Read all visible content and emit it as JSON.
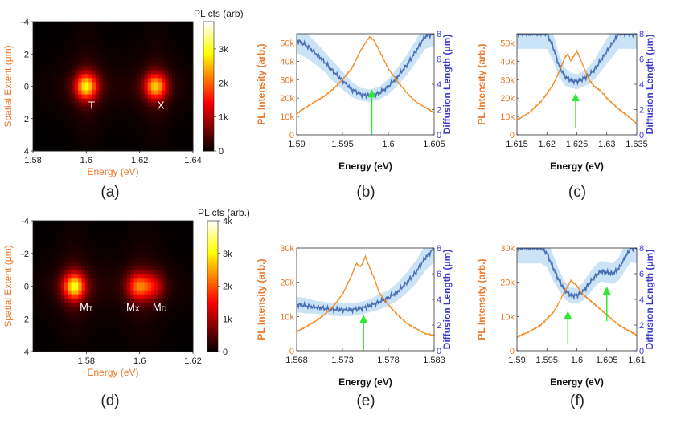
{
  "colors": {
    "orange": "#f28a1e",
    "blue": "#4a70b5",
    "band": "#b9d9f3",
    "axis_orange": "#e9782a",
    "axis_blue": "#3a3acf",
    "arrow": "#33e833"
  },
  "chart_data": [
    {
      "id": "a",
      "type": "heatmap",
      "panel_label": "(a)",
      "xlabel": "Energy (eV)",
      "ylabel": "Spatial Extent (μm)",
      "xlim": [
        1.58,
        1.64
      ],
      "ylim": [
        -4,
        4
      ],
      "xticks": [
        1.58,
        1.6,
        1.62,
        1.64
      ],
      "xtick_labels": [
        "1.58",
        "1.6",
        "1.62",
        "1.64"
      ],
      "yticks": [
        -4,
        -2,
        0,
        2,
        4
      ],
      "ytick_labels": [
        "-4",
        "-2",
        "0",
        "2",
        "4"
      ],
      "colorbar_label": "PL cts (arb)",
      "colorbar_range": [
        0,
        3800
      ],
      "colorbar_ticks": [
        0,
        1000,
        2000,
        3000
      ],
      "colorbar_tick_labels": [
        "0",
        "1k",
        "2k",
        "3k"
      ],
      "peaks": [
        {
          "energy": 1.6,
          "position": 0,
          "intensity": 3300,
          "sigma_e": 0.0028,
          "sigma_x": 0.55
        },
        {
          "energy": 1.626,
          "position": 0,
          "intensity": 3000,
          "sigma_e": 0.0028,
          "sigma_x": 0.55
        }
      ],
      "annotations": [
        {
          "text": "T",
          "energy": 1.602,
          "position": 1.4
        },
        {
          "text": "X",
          "energy": 1.628,
          "position": 1.4
        }
      ]
    },
    {
      "id": "b",
      "type": "line",
      "panel_label": "(b)",
      "xlabel": "Energy (eV)",
      "ylabel_left": "PL Intensity (arb.)",
      "ylabel_right": "Diffusion Length (μm)",
      "xlim": [
        1.59,
        1.605
      ],
      "ylim_left": [
        0,
        55000
      ],
      "ylim_right": [
        0,
        8
      ],
      "xticks": [
        1.59,
        1.595,
        1.6,
        1.605
      ],
      "xtick_labels": [
        "1.59",
        "1.595",
        "1.6",
        "1.605"
      ],
      "yticks_left": [
        0,
        10000,
        20000,
        30000,
        40000,
        50000
      ],
      "ytick_labels_left": [
        "0",
        "10k",
        "20k",
        "30k",
        "40k",
        "50k"
      ],
      "yticks_right": [
        0,
        2,
        4,
        6,
        8
      ],
      "ytick_labels_right": [
        "0",
        "2",
        "4",
        "6",
        "8"
      ],
      "series": [
        {
          "name": "PL Intensity",
          "axis": "left",
          "x": [
            1.59,
            1.591,
            1.592,
            1.593,
            1.594,
            1.595,
            1.596,
            1.597,
            1.5975,
            1.598,
            1.5985,
            1.599,
            1.6,
            1.601,
            1.602,
            1.603,
            1.604,
            1.605
          ],
          "y": [
            11500,
            15000,
            18000,
            21000,
            25000,
            30000,
            36000,
            46000,
            50000,
            53500,
            51000,
            46000,
            36000,
            29000,
            23000,
            18000,
            15000,
            12000
          ]
        },
        {
          "name": "Diffusion Length",
          "axis": "right",
          "x": [
            1.59,
            1.591,
            1.592,
            1.593,
            1.594,
            1.595,
            1.596,
            1.597,
            1.598,
            1.599,
            1.6,
            1.601,
            1.602,
            1.603,
            1.604,
            1.605
          ],
          "y": [
            7.5,
            7.1,
            6.5,
            5.8,
            5.0,
            4.3,
            3.6,
            3.2,
            3.1,
            3.3,
            3.8,
            4.6,
            5.5,
            6.6,
            7.8,
            8.0
          ],
          "band": [
            1.0,
            1.0,
            0.9,
            0.8,
            0.8,
            0.7,
            0.6,
            0.5,
            0.5,
            0.5,
            0.6,
            0.7,
            0.8,
            0.9,
            1.0,
            1.0
          ]
        }
      ],
      "arrows": [
        {
          "x": 1.5982,
          "y_from": 0.0,
          "y_to": 3.6
        }
      ]
    },
    {
      "id": "c",
      "type": "line",
      "panel_label": "(c)",
      "xlabel": "Energy (eV)",
      "ylabel_left": "PL Intensity (arb.)",
      "ylabel_right": "Diffusion Length (μm)",
      "xlim": [
        1.615,
        1.635
      ],
      "ylim_left": [
        0,
        55000
      ],
      "ylim_right": [
        0,
        8
      ],
      "xticks": [
        1.615,
        1.62,
        1.625,
        1.63,
        1.635
      ],
      "xtick_labels": [
        "1.615",
        "1.62",
        "1.625",
        "1.63",
        "1.635"
      ],
      "yticks_left": [
        0,
        10000,
        20000,
        30000,
        40000,
        50000
      ],
      "ytick_labels_left": [
        "0",
        "10k",
        "20k",
        "30k",
        "40k",
        "50k"
      ],
      "yticks_right": [
        0,
        2,
        4,
        6,
        8
      ],
      "ytick_labels_right": [
        "0",
        "2",
        "4",
        "6",
        "8"
      ],
      "series": [
        {
          "name": "PL Intensity",
          "axis": "left",
          "x": [
            1.615,
            1.617,
            1.619,
            1.621,
            1.622,
            1.623,
            1.6235,
            1.624,
            1.6245,
            1.625,
            1.6255,
            1.626,
            1.627,
            1.628,
            1.629,
            1.63,
            1.632,
            1.634,
            1.635
          ],
          "y": [
            8000,
            12000,
            18000,
            27000,
            34000,
            42000,
            44000,
            40000,
            43000,
            45500,
            42000,
            38000,
            30000,
            26000,
            24000,
            20000,
            14000,
            9000,
            6000
          ]
        },
        {
          "name": "Diffusion Length",
          "axis": "right",
          "x": [
            1.615,
            1.618,
            1.62,
            1.621,
            1.622,
            1.623,
            1.624,
            1.625,
            1.626,
            1.627,
            1.628,
            1.629,
            1.63,
            1.631,
            1.632,
            1.633,
            1.634,
            1.635
          ],
          "y": [
            8.0,
            8.0,
            8.0,
            7.0,
            5.5,
            4.6,
            4.3,
            4.2,
            4.4,
            4.7,
            5.2,
            5.9,
            6.6,
            7.3,
            8.0,
            8.0,
            8.0,
            8.0
          ],
          "band": [
            1.2,
            1.2,
            1.2,
            1.1,
            0.9,
            0.7,
            0.6,
            0.6,
            0.6,
            0.7,
            0.8,
            0.9,
            1.0,
            1.1,
            1.2,
            1.2,
            1.2,
            1.2
          ]
        }
      ],
      "arrows": [
        {
          "x": 1.6248,
          "y_from": 0.5,
          "y_to": 3.3
        }
      ]
    },
    {
      "id": "d",
      "type": "heatmap",
      "panel_label": "(d)",
      "xlabel": "Energy (eV)",
      "ylabel": "Spatial Extent (μm)",
      "xlim": [
        1.56,
        1.62
      ],
      "ylim": [
        -4,
        4
      ],
      "xticks": [
        1.58,
        1.6,
        1.62
      ],
      "xtick_labels": [
        "1.58",
        "1.6",
        "1.62"
      ],
      "yticks": [
        -4,
        -2,
        0,
        2,
        4
      ],
      "ytick_labels": [
        "-4",
        "-2",
        "0",
        "2",
        "4"
      ],
      "colorbar_label": "PL cts (arb.)",
      "colorbar_range": [
        0,
        4000
      ],
      "colorbar_ticks": [
        0,
        1000,
        2000,
        3000,
        4000
      ],
      "colorbar_tick_labels": [
        "0",
        "1k",
        "2k",
        "3k",
        "4k"
      ],
      "peaks": [
        {
          "energy": 1.5755,
          "position": 0,
          "intensity": 3600,
          "sigma_e": 0.0028,
          "sigma_x": 0.55
        },
        {
          "energy": 1.5995,
          "position": 0,
          "intensity": 2300,
          "sigma_e": 0.0028,
          "sigma_x": 0.55
        },
        {
          "energy": 1.605,
          "position": 0,
          "intensity": 1400,
          "sigma_e": 0.0028,
          "sigma_x": 0.55
        }
      ],
      "annotations": [
        {
          "text": "M",
          "sub": "T",
          "energy": 1.58,
          "position": 1.5
        },
        {
          "text": "M",
          "sub": "X",
          "energy": 1.5975,
          "position": 1.5
        },
        {
          "text": "M",
          "sub": "D",
          "energy": 1.6075,
          "position": 1.5
        }
      ]
    },
    {
      "id": "e",
      "type": "line",
      "panel_label": "(e)",
      "xlabel": "Energy (eV)",
      "ylabel_left": "PL Intensity (arb.)",
      "ylabel_right": "Diffusion Length (μm)",
      "xlim": [
        1.568,
        1.583
      ],
      "ylim_left": [
        0,
        30000
      ],
      "ylim_right": [
        0,
        8
      ],
      "xticks": [
        1.568,
        1.573,
        1.578,
        1.583
      ],
      "xtick_labels": [
        "1.568",
        "1.573",
        "1.578",
        "1.583"
      ],
      "yticks_left": [
        0,
        10000,
        20000,
        30000
      ],
      "ytick_labels_left": [
        "0",
        "10k",
        "20k",
        "30k"
      ],
      "yticks_right": [
        0,
        2,
        4,
        6,
        8
      ],
      "ytick_labels_right": [
        "0",
        "2",
        "4",
        "6",
        "8"
      ],
      "series": [
        {
          "name": "PL Intensity",
          "axis": "left",
          "x": [
            1.568,
            1.569,
            1.57,
            1.571,
            1.572,
            1.573,
            1.574,
            1.5745,
            1.575,
            1.5755,
            1.576,
            1.5765,
            1.577,
            1.578,
            1.579,
            1.58,
            1.581,
            1.582,
            1.583
          ],
          "y": [
            5500,
            7000,
            8500,
            10500,
            13000,
            16500,
            22000,
            25500,
            24500,
            27500,
            24000,
            21000,
            17000,
            13500,
            10500,
            8000,
            6500,
            5000,
            4500
          ]
        },
        {
          "name": "Diffusion Length",
          "axis": "right",
          "x": [
            1.568,
            1.569,
            1.57,
            1.571,
            1.572,
            1.573,
            1.574,
            1.575,
            1.576,
            1.577,
            1.578,
            1.579,
            1.58,
            1.581,
            1.582,
            1.583
          ],
          "y": [
            3.6,
            3.5,
            3.4,
            3.3,
            3.2,
            3.2,
            3.2,
            3.3,
            3.5,
            3.8,
            4.1,
            4.6,
            5.3,
            6.1,
            7.2,
            8.0
          ],
          "band": [
            0.6,
            0.6,
            0.5,
            0.5,
            0.5,
            0.5,
            0.5,
            0.5,
            0.5,
            0.6,
            0.6,
            0.7,
            0.8,
            0.9,
            1.0,
            1.1
          ]
        }
      ],
      "arrows": [
        {
          "x": 1.5753,
          "y_from": 0.0,
          "y_to": 2.8
        }
      ]
    },
    {
      "id": "f",
      "type": "line",
      "panel_label": "(f)",
      "xlabel": "Energy (eV)",
      "ylabel_left": "PL Intensity (arb.)",
      "ylabel_right": "Diffusion Length (μm)",
      "xlim": [
        1.59,
        1.61
      ],
      "ylim_left": [
        0,
        30000
      ],
      "ylim_right": [
        0,
        8
      ],
      "xticks": [
        1.59,
        1.595,
        1.6,
        1.605,
        1.61
      ],
      "xtick_labels": [
        "1.59",
        "1.595",
        "1.6",
        "1.605",
        "1.61"
      ],
      "yticks_left": [
        0,
        10000,
        20000,
        30000
      ],
      "ytick_labels_left": [
        "0",
        "10k",
        "20k",
        "30k"
      ],
      "yticks_right": [
        0,
        2,
        4,
        6,
        8
      ],
      "ytick_labels_right": [
        "0",
        "2",
        "4",
        "6",
        "8"
      ],
      "series": [
        {
          "name": "PL Intensity",
          "axis": "left",
          "x": [
            1.59,
            1.592,
            1.594,
            1.596,
            1.597,
            1.598,
            1.599,
            1.6,
            1.601,
            1.602,
            1.603,
            1.604,
            1.605,
            1.606,
            1.607,
            1.608,
            1.609,
            1.61
          ],
          "y": [
            4000,
            5500,
            7500,
            11000,
            14000,
            17500,
            20500,
            19000,
            16500,
            15000,
            13500,
            12000,
            10500,
            9000,
            7500,
            6500,
            5500,
            4500
          ]
        },
        {
          "name": "Diffusion Length",
          "axis": "right",
          "x": [
            1.59,
            1.594,
            1.595,
            1.596,
            1.597,
            1.598,
            1.599,
            1.6,
            1.601,
            1.602,
            1.603,
            1.604,
            1.605,
            1.606,
            1.607,
            1.608,
            1.609,
            1.61
          ],
          "y": [
            8.0,
            8.0,
            7.6,
            6.5,
            5.5,
            4.7,
            4.3,
            4.3,
            4.6,
            5.2,
            5.8,
            6.2,
            6.1,
            6.0,
            6.4,
            7.2,
            8.0,
            8.0
          ],
          "band": [
            1.2,
            1.2,
            1.1,
            1.0,
            0.8,
            0.7,
            0.6,
            0.6,
            0.7,
            0.8,
            0.8,
            0.8,
            0.8,
            0.8,
            0.9,
            1.0,
            1.1,
            1.2
          ]
        }
      ],
      "arrows": [
        {
          "x": 1.5985,
          "y_from": 0.5,
          "y_to": 3.1
        },
        {
          "x": 1.605,
          "y_from": 2.3,
          "y_to": 5.0
        }
      ]
    }
  ]
}
